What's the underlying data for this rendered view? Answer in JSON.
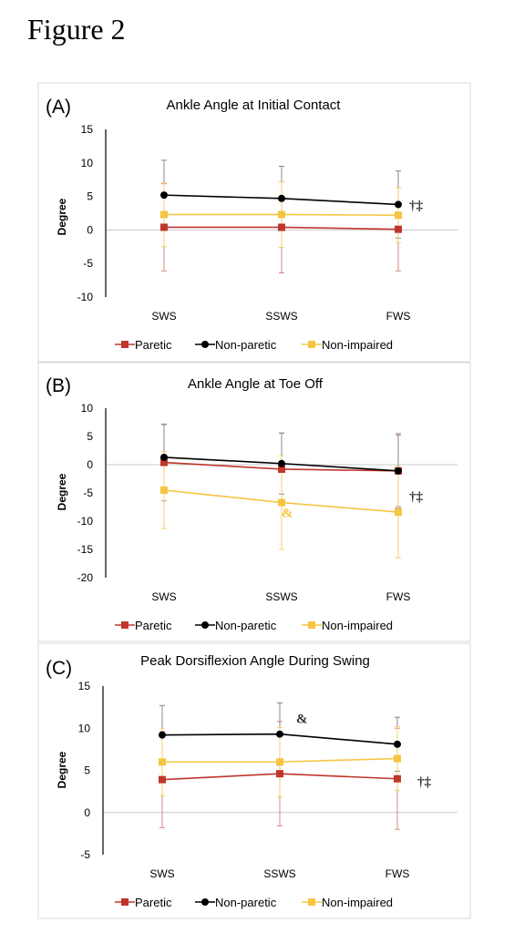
{
  "figure_title": "Figure 2",
  "legend": [
    {
      "label": "Paretic",
      "color": "#c0362c",
      "marker": "square"
    },
    {
      "label": "Non-paretic",
      "color": "#000000",
      "marker": "circle"
    },
    {
      "label": "Non-impaired",
      "color": "#f5c542",
      "marker": "square"
    }
  ],
  "chart_data": [
    {
      "panel": "(A)",
      "type": "line",
      "title": "Ankle Angle at Initial Contact",
      "xlabel": "",
      "ylabel": "Degree",
      "ylim": [
        -10,
        15
      ],
      "yticks": [
        15,
        10,
        5,
        0,
        -5,
        -10
      ],
      "categories": [
        "SWS",
        "SSWS",
        "FWS"
      ],
      "series": [
        {
          "name": "Paretic",
          "values": [
            0.4,
            0.4,
            0.1
          ],
          "err": [
            6.5,
            6.8,
            6.2
          ]
        },
        {
          "name": "Non-paretic",
          "values": [
            5.2,
            4.7,
            3.8
          ],
          "err": [
            5.2,
            4.8,
            5.0
          ]
        },
        {
          "name": "Non-impaired",
          "values": [
            2.3,
            2.3,
            2.2
          ],
          "err": [
            4.8,
            4.9,
            4.1
          ]
        }
      ],
      "annotations": [
        {
          "text": "†‡",
          "at": "FWS",
          "color": "#333333"
        }
      ]
    },
    {
      "panel": "(B)",
      "type": "line",
      "title": "Ankle Angle at Toe Off",
      "xlabel": "",
      "ylabel": "Degree",
      "ylim": [
        -20,
        10
      ],
      "yticks": [
        10,
        5,
        0,
        -5,
        -10,
        -15,
        -20
      ],
      "categories": [
        "SWS",
        "SSWS",
        "FWS"
      ],
      "series": [
        {
          "name": "Paretic",
          "values": [
            0.4,
            -0.8,
            -1.1
          ],
          "err": [
            6.8,
            6.4,
            6.3
          ]
        },
        {
          "name": "Non-paretic",
          "values": [
            1.3,
            0.2,
            -1.1
          ],
          "err": [
            5.8,
            5.4,
            6.6
          ]
        },
        {
          "name": "Non-impaired",
          "values": [
            -4.5,
            -6.7,
            -8.4
          ],
          "err": [
            6.8,
            8.3,
            8.1
          ]
        }
      ],
      "annotations": [
        {
          "text": "&",
          "at": "SSWS",
          "color": "#f5c542"
        },
        {
          "text": "†‡",
          "at": "FWS",
          "color": "#333333"
        }
      ]
    },
    {
      "panel": "(C)",
      "type": "line",
      "title": "Peak Dorsiflexion Angle During Swing",
      "xlabel": "",
      "ylabel": "Degree",
      "ylim": [
        -5,
        15
      ],
      "yticks": [
        15,
        10,
        5,
        0,
        -5
      ],
      "categories": [
        "SWS",
        "SSWS",
        "FWS"
      ],
      "series": [
        {
          "name": "Paretic",
          "values": [
            3.9,
            4.6,
            4.0
          ],
          "err": [
            5.7,
            6.2,
            6.0
          ]
        },
        {
          "name": "Non-paretic",
          "values": [
            9.2,
            9.3,
            8.1
          ],
          "err": [
            3.5,
            3.7,
            3.2
          ]
        },
        {
          "name": "Non-impaired",
          "values": [
            6.0,
            6.0,
            6.4
          ],
          "err": [
            4.0,
            4.1,
            3.8
          ]
        }
      ],
      "annotations": [
        {
          "text": "&",
          "at": "SSWS",
          "color": "#333333"
        },
        {
          "text": "†‡",
          "at": "FWS",
          "color": "#333333"
        }
      ]
    }
  ]
}
